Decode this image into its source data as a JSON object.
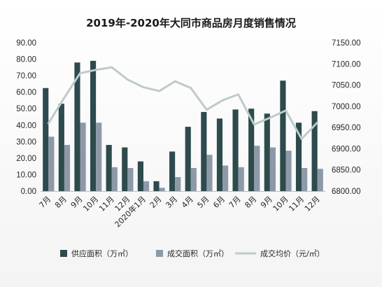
{
  "chart_data": {
    "type": "bar",
    "title": "2019年-2020年大同市商品房月度销售情况",
    "categories": [
      "7月",
      "8月",
      "9月",
      "10月",
      "11月",
      "12月",
      "2020年1月",
      "2月",
      "3月",
      "4月",
      "5月",
      "6月",
      "7月",
      "8月",
      "9月",
      "10月",
      "11月",
      "12月"
    ],
    "series": [
      {
        "name": "供应面积（万㎡）",
        "type": "bar",
        "axis": "left",
        "color": "#2d4a4d",
        "values": [
          62.5,
          53.0,
          78.0,
          79.0,
          28.0,
          26.5,
          18.0,
          6.0,
          24.0,
          39.0,
          48.0,
          44.0,
          49.5,
          50.0,
          47.0,
          67.0,
          41.5,
          48.5
        ]
      },
      {
        "name": "成交面积（万㎡）",
        "type": "bar",
        "axis": "left",
        "color": "#8e99a8",
        "values": [
          33.0,
          28.0,
          41.5,
          41.5,
          14.5,
          14.0,
          6.0,
          2.0,
          8.5,
          14.0,
          22.0,
          15.5,
          14.5,
          27.5,
          26.5,
          24.5,
          14.0,
          13.5
        ]
      },
      {
        "name": "成交均价（元/㎡）",
        "type": "line",
        "axis": "right",
        "color": "#bfcaca",
        "values": [
          6960,
          7020,
          7078,
          7086,
          7092,
          7063,
          7045,
          7036,
          7059,
          7043,
          6992,
          7014,
          7028,
          6957,
          6973,
          6990,
          6923,
          6962
        ]
      }
    ],
    "yleft": {
      "min": 0,
      "max": 90,
      "step": 10,
      "tick_labels": [
        "0.00",
        "10.00",
        "20.00",
        "30.00",
        "40.00",
        "50.00",
        "60.00",
        "70.00",
        "80.00",
        "90.00"
      ]
    },
    "yright": {
      "min": 6800,
      "max": 7150,
      "step": 50,
      "tick_labels": [
        "6800.00",
        "6850.00",
        "6900.00",
        "6950.00",
        "7000.00",
        "7050.00",
        "7100.00",
        "7150.00"
      ]
    },
    "grid": false,
    "legend_position": "bottom"
  }
}
